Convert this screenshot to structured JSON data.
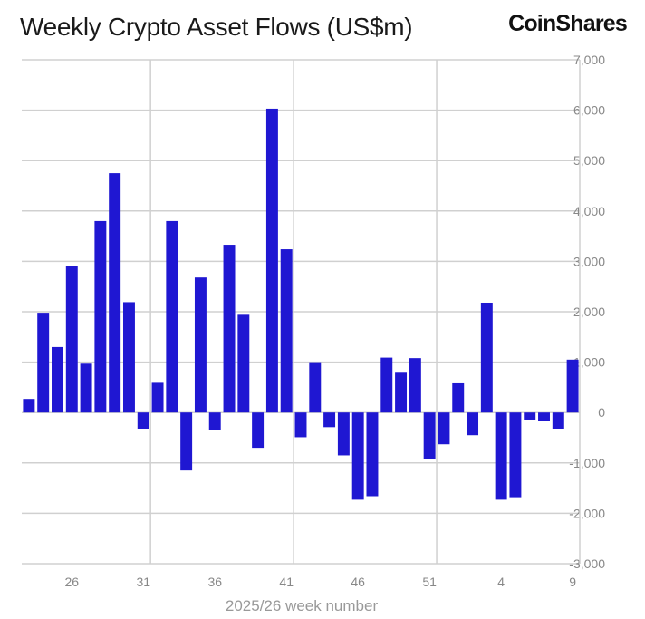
{
  "header": {
    "title": "Weekly Crypto Asset Flows (US$m)",
    "brand": "CoinShares"
  },
  "chart_data": {
    "type": "bar",
    "title": "Weekly Crypto Asset Flows (US$m)",
    "xlabel": "2025/26 week number",
    "ylabel": "",
    "ylim": [
      -3000,
      7000
    ],
    "yticks": [
      7000,
      6000,
      5000,
      4000,
      3000,
      2000,
      1000,
      0,
      -1000,
      -2000,
      -3000
    ],
    "ytick_labels": [
      "7,000",
      "6,000",
      "5,000",
      "4,000",
      "3,000",
      "2,000",
      "1,000",
      "0",
      "-1,000",
      "-2,000",
      "-3,000"
    ],
    "xtick_labels": [
      "26",
      "31",
      "36",
      "41",
      "46",
      "51",
      "4",
      "9"
    ],
    "xtick_weeks": [
      26,
      31,
      36,
      41,
      46,
      51,
      4,
      9
    ],
    "grid": true,
    "y_axis_side": "right",
    "bar_color": "#1f17d2",
    "categories": [
      23,
      24,
      25,
      26,
      27,
      28,
      29,
      30,
      31,
      32,
      33,
      34,
      35,
      36,
      37,
      38,
      39,
      40,
      41,
      42,
      43,
      44,
      45,
      46,
      47,
      48,
      49,
      50,
      51,
      52,
      1,
      2,
      3,
      4,
      5,
      6,
      7,
      8,
      9
    ],
    "values": [
      270,
      1980,
      1300,
      2900,
      970,
      3800,
      4750,
      2190,
      -320,
      590,
      3800,
      -1150,
      2680,
      -340,
      3330,
      1940,
      -700,
      6030,
      3240,
      -490,
      1000,
      -290,
      -850,
      -1730,
      -1660,
      1090,
      790,
      1080,
      -920,
      -630,
      580,
      -450,
      2180,
      -1730,
      -1680,
      -140,
      -160,
      -320,
      1050
    ]
  }
}
